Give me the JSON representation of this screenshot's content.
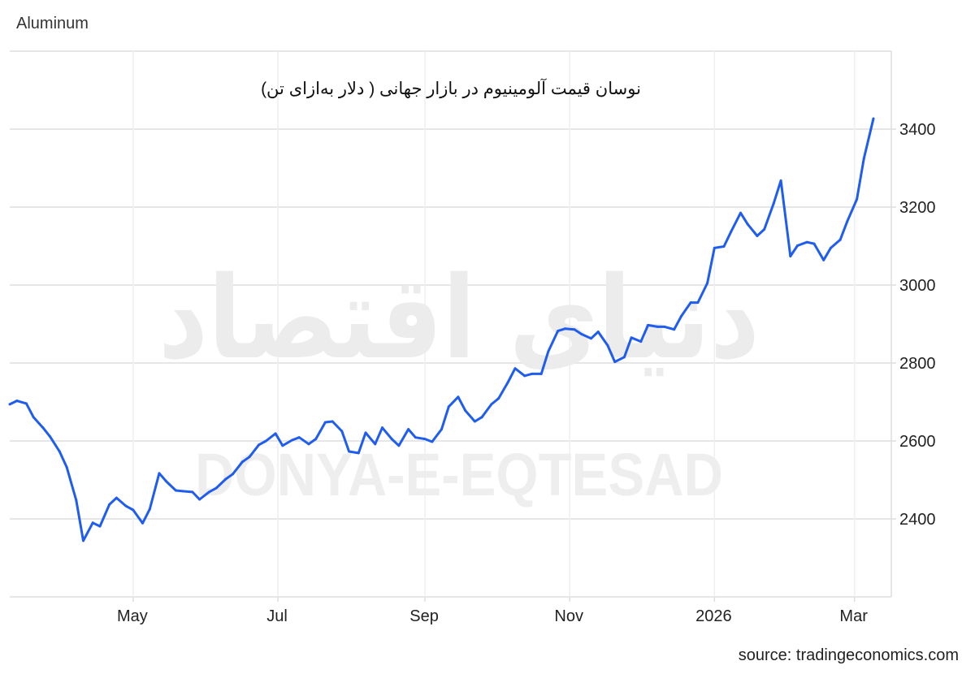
{
  "header": {
    "title": "Aluminum"
  },
  "footer": {
    "source": "source: tradingeconomics.com"
  },
  "watermark": {
    "logo_text": "دنیای اقتصاد",
    "text": "DONYA-E-EQTESAD"
  },
  "colors": {
    "line": "#1f5cf0",
    "grid": "#dddddd",
    "watermark": "#ececec"
  },
  "chart_data": {
    "type": "line",
    "title": "نوسان قیمت آلومینیوم در بازار جهانی ( دلار به‌ازای تن)",
    "xlabel": "",
    "ylabel": "",
    "ylim": [
      2200,
      3600
    ],
    "xlim": [
      "2025-03-10",
      "2026-03-09"
    ],
    "grid": true,
    "y_axis_side": "right",
    "y_ticks": [
      2400,
      2600,
      2800,
      3000,
      3200,
      3400
    ],
    "x_ticks": [
      {
        "label": "May",
        "date": "2025-05-01"
      },
      {
        "label": "Jul",
        "date": "2025-07-01"
      },
      {
        "label": "Sep",
        "date": "2025-09-01"
      },
      {
        "label": "Nov",
        "date": "2025-11-01"
      },
      {
        "label": "2026",
        "date": "2026-01-01"
      },
      {
        "label": "Mar",
        "date": "2026-03-01"
      }
    ],
    "series": [
      {
        "x": [
          "2025-03-10",
          "2025-03-13",
          "2025-03-17",
          "2025-03-20",
          "2025-03-24",
          "2025-03-27",
          "2025-03-31",
          "2025-04-03",
          "2025-04-07",
          "2025-04-10",
          "2025-04-14",
          "2025-04-17",
          "2025-04-21",
          "2025-04-24",
          "2025-04-28",
          "2025-05-01",
          "2025-05-05",
          "2025-05-08",
          "2025-05-12",
          "2025-05-15",
          "2025-05-19",
          "2025-05-22",
          "2025-05-26",
          "2025-05-29",
          "2025-06-02",
          "2025-06-05",
          "2025-06-09",
          "2025-06-12",
          "2025-06-16",
          "2025-06-19",
          "2025-06-23",
          "2025-06-26",
          "2025-06-30",
          "2025-07-03",
          "2025-07-07",
          "2025-07-10",
          "2025-07-14",
          "2025-07-17",
          "2025-07-21",
          "2025-07-24",
          "2025-07-28",
          "2025-07-31",
          "2025-08-04",
          "2025-08-07",
          "2025-08-11",
          "2025-08-14",
          "2025-08-18",
          "2025-08-21",
          "2025-08-25",
          "2025-08-28",
          "2025-09-01",
          "2025-09-04",
          "2025-09-08",
          "2025-09-11",
          "2025-09-15",
          "2025-09-18",
          "2025-09-22",
          "2025-09-25",
          "2025-09-29",
          "2025-10-02",
          "2025-10-06",
          "2025-10-09",
          "2025-10-13",
          "2025-10-16",
          "2025-10-20",
          "2025-10-23",
          "2025-10-27",
          "2025-10-30",
          "2025-11-03",
          "2025-11-06",
          "2025-11-10",
          "2025-11-13",
          "2025-11-17",
          "2025-11-20",
          "2025-11-24",
          "2025-11-27",
          "2025-12-01",
          "2025-12-04",
          "2025-12-08",
          "2025-12-11",
          "2025-12-15",
          "2025-12-18",
          "2025-12-22",
          "2025-12-25",
          "2025-12-29",
          "2026-01-01",
          "2026-01-05",
          "2026-01-08",
          "2026-01-12",
          "2026-01-15",
          "2026-01-19",
          "2026-01-22",
          "2026-01-26",
          "2026-01-29",
          "2026-02-02",
          "2026-02-05",
          "2026-02-09",
          "2026-02-12",
          "2026-02-16",
          "2026-02-19",
          "2026-02-23",
          "2026-02-26",
          "2026-03-02",
          "2026-03-05",
          "2026-03-09"
        ],
        "values": [
          2694,
          2703,
          2696,
          2661,
          2634,
          2611,
          2573,
          2533,
          2448,
          2344,
          2390,
          2381,
          2437,
          2454,
          2433,
          2423,
          2389,
          2425,
          2517,
          2496,
          2473,
          2471,
          2469,
          2450,
          2469,
          2479,
          2502,
          2515,
          2546,
          2559,
          2590,
          2600,
          2619,
          2588,
          2602,
          2609,
          2592,
          2605,
          2648,
          2650,
          2625,
          2573,
          2569,
          2621,
          2592,
          2634,
          2605,
          2588,
          2630,
          2609,
          2605,
          2598,
          2630,
          2688,
          2713,
          2678,
          2650,
          2661,
          2694,
          2709,
          2751,
          2786,
          2767,
          2772,
          2772,
          2830,
          2882,
          2888,
          2886,
          2874,
          2863,
          2880,
          2845,
          2803,
          2815,
          2865,
          2855,
          2897,
          2893,
          2893,
          2886,
          2920,
          2955,
          2955,
          3005,
          3095,
          3099,
          3137,
          3185,
          3156,
          3126,
          3143,
          3210,
          3268,
          3074,
          3101,
          3110,
          3106,
          3064,
          3095,
          3116,
          3164,
          3220,
          3325,
          3427
        ]
      }
    ]
  }
}
